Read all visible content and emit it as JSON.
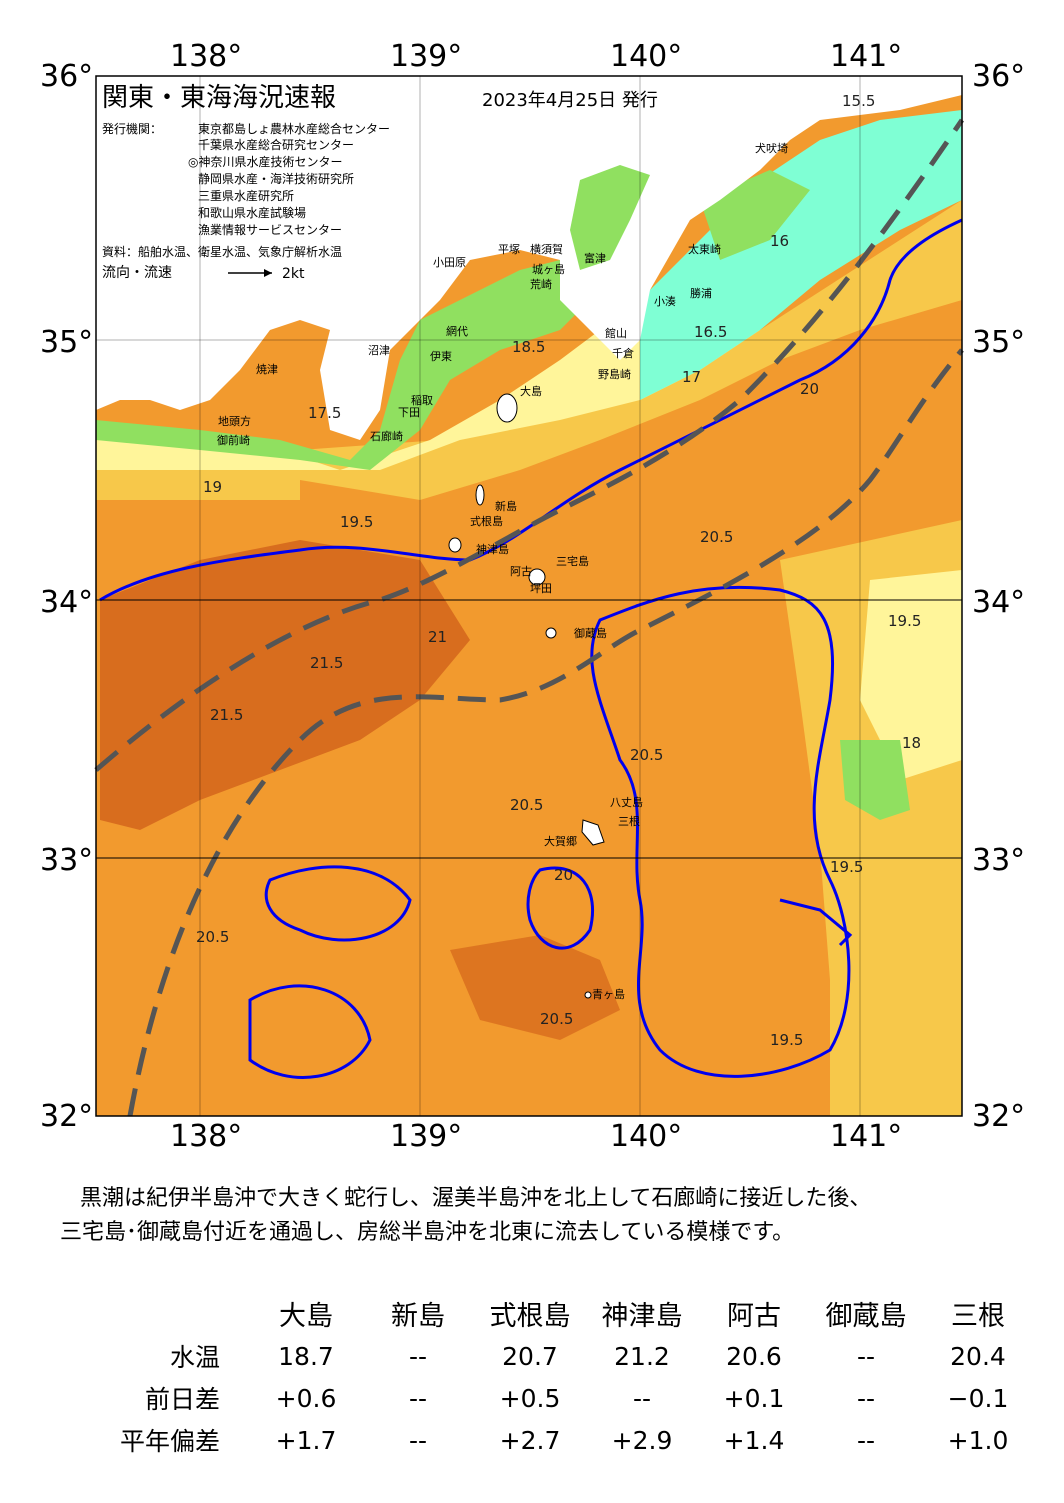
{
  "map": {
    "title": "関東・東海海況速報",
    "issue_date": "2023年4月25日 発行",
    "issuers_label": "発行機関：",
    "issuers": [
      "東京都島しょ農林水産総合センター",
      "千葉県水産総合研究センター",
      "◎神奈川県水産技術センター",
      "静岡県水産・海洋技術研究所",
      "三重県水産研究所",
      "和歌山県水産試験場",
      "漁業情報サービスセンター"
    ],
    "sources": "資料：船舶水温、衛星水温、気象庁解析水温",
    "current_legend_label": "流向・流速",
    "current_legend_speed": "2kt",
    "lon_labels": [
      "138°",
      "139°",
      "140°",
      "141°"
    ],
    "lat_labels": [
      "36°",
      "35°",
      "34°",
      "33°",
      "32°"
    ],
    "colors": {
      "land": "#ffffff",
      "temp_15_17": "#7fffd4",
      "temp_17_18": "#90e060",
      "temp_18_19": "#fff59a",
      "temp_19_20": "#f7c84a",
      "temp_20_21": "#f29a2e",
      "temp_21_plus": "#d86d1e",
      "isotherm_20": "#0000ee",
      "kuroshio_axis": "#555555"
    },
    "place_names": [
      "大島",
      "新島",
      "式根島",
      "神津島",
      "三宅島",
      "御蔵島",
      "八丈島",
      "三根",
      "大賀郷",
      "青ヶ島",
      "犬吠埼",
      "太東崎",
      "勝浦",
      "小湊",
      "館山",
      "千倉",
      "野島崎",
      "富津",
      "横須賀",
      "城ヶ島",
      "荒崎",
      "平塚",
      "小田原",
      "沼津",
      "伊東",
      "網代",
      "下田",
      "稲取",
      "石廊崎",
      "焼津",
      "御前崎",
      "地頭方",
      "阿古",
      "坪田"
    ],
    "isotherm_labels": [
      "15.5",
      "16",
      "16.5",
      "17",
      "17.5",
      "18",
      "18.5",
      "19",
      "19.5",
      "20",
      "20.5",
      "21",
      "21.5"
    ]
  },
  "summary": {
    "line1": "黒潮は紀伊半島沖で大きく蛇行し、渥美半島沖を北上して石廊崎に接近した後、",
    "line2": "三宅島･御蔵島付近を通過し、房総半島沖を北東に流去している模様です。"
  },
  "observations": {
    "columns": [
      "大島",
      "新島",
      "式根島",
      "神津島",
      "阿古",
      "御蔵島",
      "三根"
    ],
    "rows": [
      {
        "label": "水温",
        "values": [
          "18.7",
          "--",
          "20.7",
          "21.2",
          "20.6",
          "--",
          "20.4"
        ]
      },
      {
        "label": "前日差",
        "values": [
          "+0.6",
          "--",
          "+0.5",
          "--",
          "+0.1",
          "--",
          "−0.1"
        ]
      },
      {
        "label": "平年偏差",
        "values": [
          "+1.7",
          "--",
          "+2.7",
          "+2.9",
          "+1.4",
          "--",
          "+1.0"
        ]
      }
    ]
  }
}
